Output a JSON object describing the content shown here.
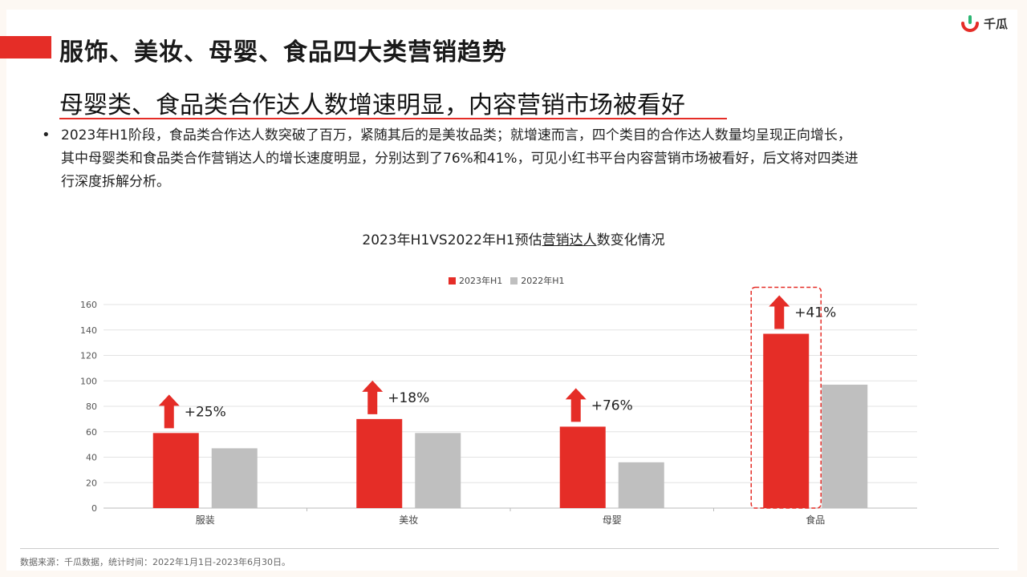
{
  "header": {
    "title": "服饰、美妆、母婴、食品四大类营销趋势",
    "logo_text": "千瓜"
  },
  "content": {
    "subtitle": "母婴类、食品类合作达人数增速明显，内容营销市场被看好",
    "bullet_lines": [
      "2023年H1阶段，食品类合作达人数突破了百万，紧随其后的是美妆品类；就增速而言，四个类目的合作达人数量均呈现正向增长，",
      "其中母婴类和食品类合作营销达人的增长速度明显，分别达到了76%和41%，可见小红书平台内容营销市场被看好，后文将对四类进",
      "行深度拆解分析。"
    ]
  },
  "chart_title": {
    "part1": "2023年H1VS2022年H1预估",
    "part2": "营销达人",
    "part3": "数变化情况"
  },
  "chart_data": {
    "type": "bar",
    "title": "2023年H1VS2022年H1预估营销达人数变化情况",
    "categories": [
      "服装",
      "美妆",
      "母婴",
      "食品"
    ],
    "series": [
      {
        "name": "2023年H1",
        "values": [
          59,
          70,
          64,
          137
        ],
        "color": "#e52d27"
      },
      {
        "name": "2022年H1",
        "values": [
          47,
          59,
          36,
          97
        ],
        "color": "#bfbfbf"
      }
    ],
    "growth_labels": [
      "+25%",
      "+18%",
      "+76%",
      "+41%"
    ],
    "ylim": [
      0,
      160
    ],
    "yticks": [
      0,
      20,
      40,
      60,
      80,
      100,
      120,
      140,
      160
    ],
    "grid": true,
    "legend_position": "top-center",
    "highlight_category": "食品"
  },
  "footer": {
    "source": "数据来源：千瓜数据，统计时间：2022年1月1日-2023年6月30日。"
  },
  "colors": {
    "accent": "#e52d27",
    "secondary": "#bfbfbf",
    "logo_green": "#2bb673"
  }
}
